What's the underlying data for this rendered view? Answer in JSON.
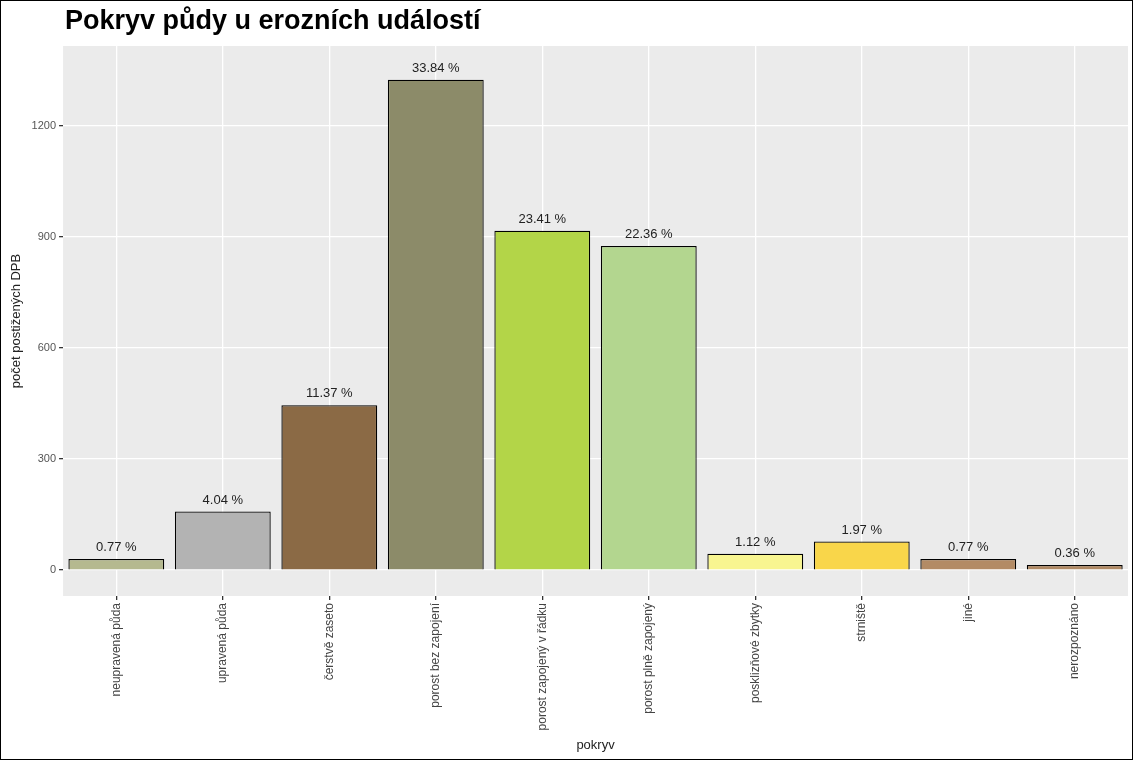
{
  "chart_data": {
    "type": "bar",
    "title": "Pokryv půdy u erozních událostí",
    "xlabel": "pokryv",
    "ylabel": "počet postižených DPB",
    "categories": [
      "neupravená půda",
      "upravená půda",
      "čerstvě zaseto",
      "porost bez zapojení",
      "porost zapojený v řádku",
      "porost plně zapojený",
      "posklizňové zbytky",
      "strniště",
      "jiné",
      "nerozpoznáno"
    ],
    "values": [
      30,
      158,
      445,
      1324,
      916,
      875,
      44,
      77,
      30,
      14
    ],
    "colors": [
      "#b5b98f",
      "#b3b3b3",
      "#8b6a45",
      "#8c8b69",
      "#b3d548",
      "#b3d68f",
      "#f8f590",
      "#f9d64a",
      "#b38b65",
      "#b08a65"
    ],
    "annotations": [
      {
        "text": "0.77 %",
        "x": "neupravená půda",
        "y": 30
      },
      {
        "text": "4.04 %",
        "x": "upravená půda",
        "y": 158
      },
      {
        "text": "11.37 %",
        "x": "čerstvě zaseto",
        "y": 445
      },
      {
        "text": "33.84 %",
        "x": "porost bez zapojení",
        "y": 1324
      },
      {
        "text": "23.41 %",
        "x": "porost zapojený v řádku",
        "y": 916
      },
      {
        "text": "22.36 %",
        "x": "porost plně zapojený",
        "y": 875
      },
      {
        "text": "1.12 %",
        "x": "posklizňové zbytky",
        "y": 44
      },
      {
        "text": "1.97 %",
        "x": "strniště",
        "y": 77
      },
      {
        "text": "0.77 %",
        "x": "jiné",
        "y": 30
      },
      {
        "text": "0.36 %",
        "x": "nerozpoznáno",
        "y": 14
      }
    ],
    "ylim": [
      -70,
      1415
    ],
    "yticks": [
      0,
      300,
      600,
      900,
      1200
    ],
    "grid": true,
    "legend": false
  }
}
